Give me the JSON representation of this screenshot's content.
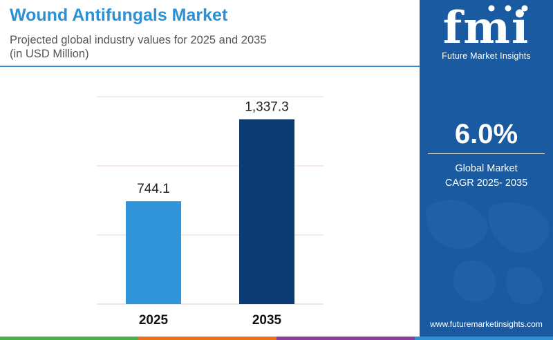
{
  "header": {
    "title": "Wound Antifungals Market",
    "subtitle_line1": "Projected global industry values for 2025 and 2035",
    "subtitle_line2": "(in USD Million)"
  },
  "chart_data": {
    "type": "bar",
    "categories": [
      "2025",
      "2035"
    ],
    "values": [
      744.1,
      1337.3
    ],
    "value_labels": [
      "744.1",
      "1,337.3"
    ],
    "bar_colors": [
      "#2f95d8",
      "#0c3a73"
    ],
    "title": "Wound Antifungals Market",
    "subtitle": "Projected global industry values for 2025 and 2035 (in USD Million)",
    "xlabel": "",
    "ylabel": "",
    "ylim": [
      0,
      1500
    ],
    "grid": true,
    "legend": "none"
  },
  "sidebar": {
    "logo_letters": "fmi",
    "logo_name": "Future Market Insights",
    "cagr_value": "6.0%",
    "cagr_label_line1": "Global Market",
    "cagr_label_line2": "CAGR 2025- 2035",
    "website": "www.futuremarketinsights.com"
  },
  "colors": {
    "title": "#2d8fd4",
    "panel": "#1a5aa0",
    "strip": [
      "#4ab04a",
      "#e8701f",
      "#8a3f9a",
      "#2d8fd4"
    ]
  }
}
